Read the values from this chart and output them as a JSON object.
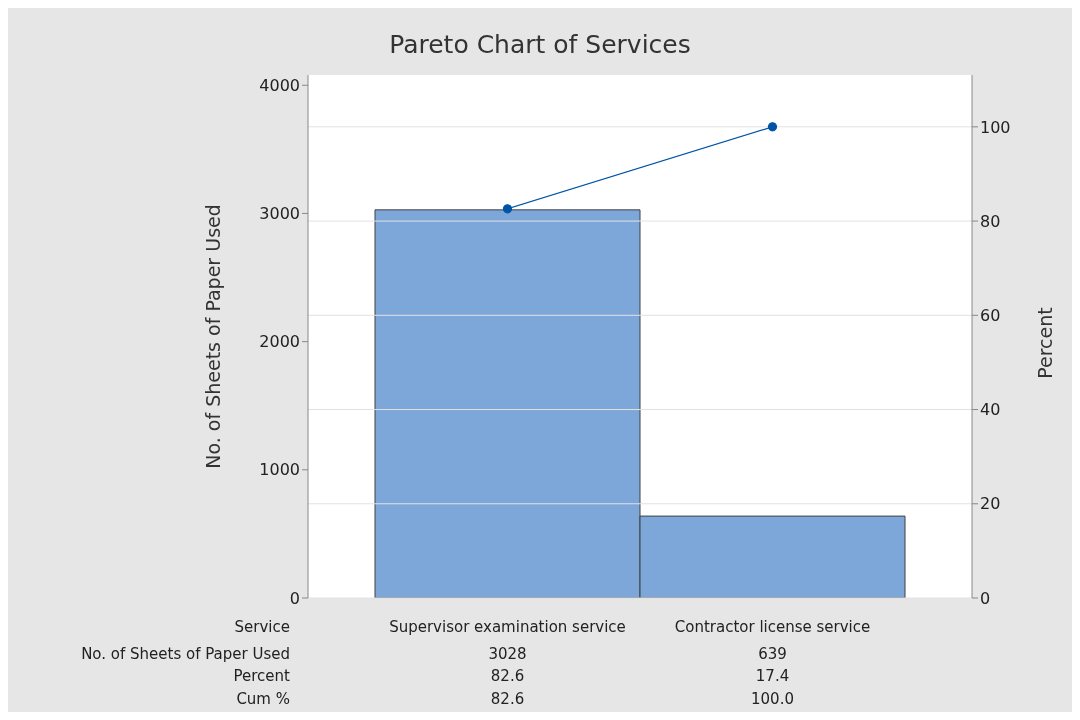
{
  "chart_data": {
    "type": "bar",
    "title": "Pareto Chart of Services",
    "xlabel": "Service",
    "ylabel": "No. of Sheets of Paper Used",
    "y2label": "Percent",
    "categories": [
      "Supervisor examination service",
      "Contractor license service"
    ],
    "series": [
      {
        "color": "#7da7d9",
        "values": [
          3028,
          639
        ],
        "value_labels": [
          "3028",
          "639"
        ]
      },
      {
        "type": "line",
        "axis": "y2",
        "color": "#0054a6",
        "values": [
          82.6,
          100
        ],
        "value_labels": [
          "82.6",
          "100.0"
        ]
      }
    ],
    "annotations": [
      "No. of Sheets of Paper Used",
      "Percent",
      "82.6",
      "17.4",
      "Cum %"
    ],
    "ylim": [
      0,
      4080
    ],
    "yticks": [
      0,
      1000,
      2000,
      3000,
      4000
    ],
    "y2lim": [
      0,
      111
    ],
    "y2ticks": [
      0,
      20,
      40,
      60,
      80,
      100
    ],
    "grid": "y",
    "legend": false,
    "marker": "circle",
    "line_style": "solid"
  }
}
